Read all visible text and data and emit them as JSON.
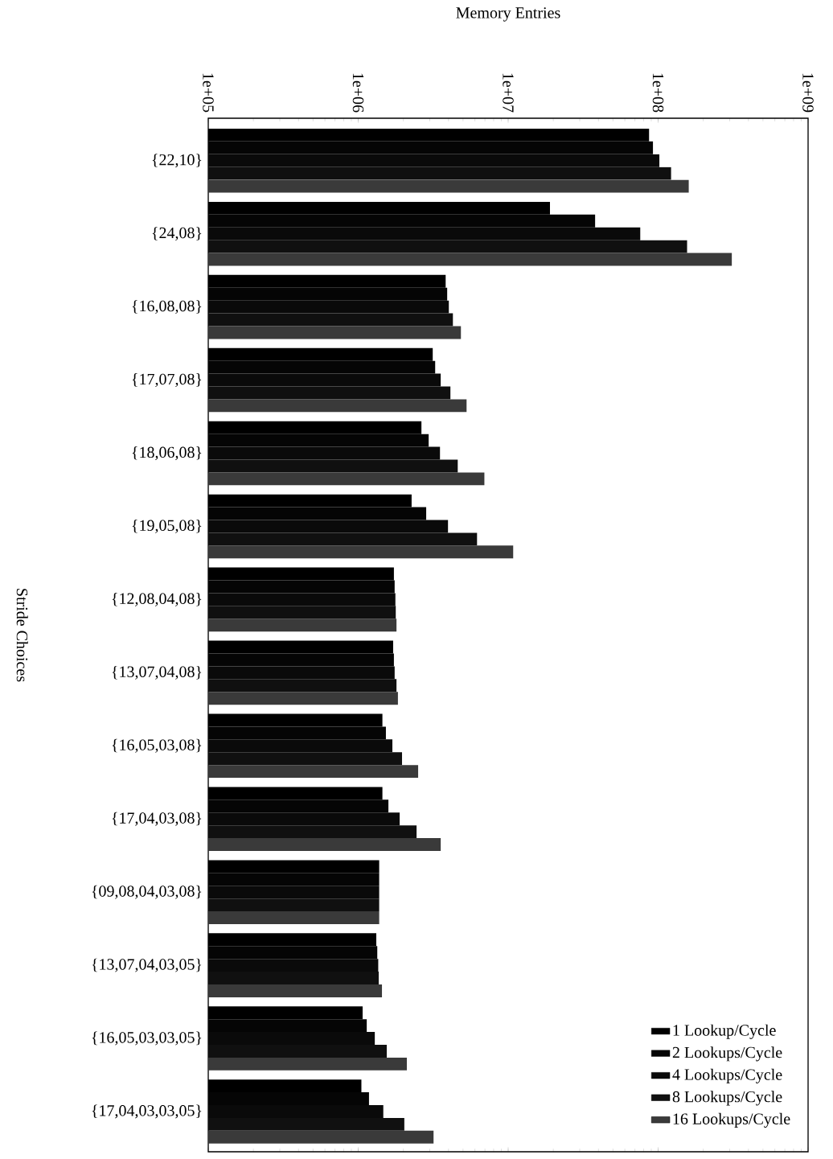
{
  "chart_data": {
    "type": "bar",
    "orientation": "horizontal",
    "log": "x",
    "xlabel": "Memory Entries",
    "ylabel": "Stride Choices",
    "categories": [
      "{22,10}",
      "{24,08}",
      "{16,08,08}",
      "{17,07,08}",
      "{18,06,08}",
      "{19,05,08}",
      "{12,08,04,08}",
      "{13,07,04,08}",
      "{16,05,03,08}",
      "{17,04,03,08}",
      "{09,08,04,03,08}",
      "{13,07,04,03,05}",
      "{16,05,03,03,05}",
      "{17,04,03,03,05}"
    ],
    "series": [
      {
        "name": "1 Lookup/Cycle",
        "color": "#000000",
        "values": [
          87000000,
          19000000,
          3830000,
          3140000,
          2640000,
          2270000,
          1730000,
          1710000,
          1450000,
          1450000,
          1380000,
          1320000,
          1070000,
          1050000
        ]
      },
      {
        "name": "2 Lookups/Cycle",
        "color": "#050505",
        "values": [
          92500000,
          38000000,
          3920000,
          3260000,
          2950000,
          2840000,
          1750000,
          1730000,
          1530000,
          1590000,
          1380000,
          1340000,
          1140000,
          1180000
        ]
      },
      {
        "name": "4 Lookups/Cycle",
        "color": "#0a0a0a",
        "values": [
          102000000,
          76000000,
          4020000,
          3550000,
          3510000,
          3970000,
          1770000,
          1750000,
          1690000,
          1890000,
          1380000,
          1360000,
          1290000,
          1470000
        ]
      },
      {
        "name": "8 Lookups/Cycle",
        "color": "#101010",
        "values": [
          122000000,
          156000000,
          4280000,
          4120000,
          4610000,
          6200000,
          1780000,
          1800000,
          1960000,
          2450000,
          1380000,
          1370000,
          1550000,
          2030000
        ]
      },
      {
        "name": "16 Lookups/Cycle",
        "color": "#3a3a3a",
        "values": [
          160000000,
          310000000,
          4840000,
          5280000,
          6940000,
          10800000,
          1800000,
          1840000,
          2510000,
          3550000,
          1380000,
          1440000,
          2110000,
          3180000
        ]
      }
    ],
    "xlim": [
      100000,
      1000000000
    ],
    "xticks": [
      {
        "value": 100000,
        "label": "1e+05"
      },
      {
        "value": 1000000,
        "label": "1e+06"
      },
      {
        "value": 10000000,
        "label": "1e+07"
      },
      {
        "value": 100000000,
        "label": "1e+08"
      },
      {
        "value": 1000000000,
        "label": "1e+09"
      }
    ],
    "legend": "bottom right"
  }
}
